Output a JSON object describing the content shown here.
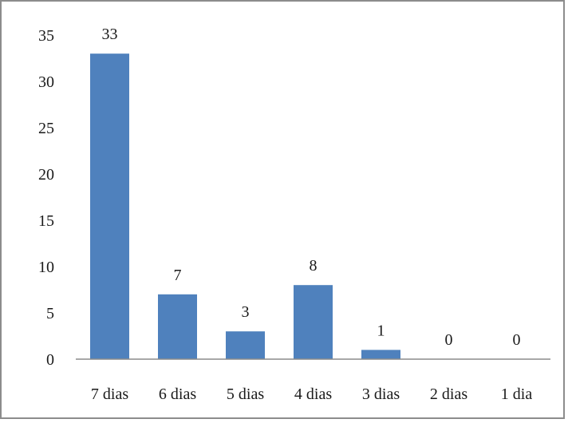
{
  "chart_data": {
    "type": "bar",
    "categories": [
      "7 dias",
      "6 dias",
      "5 dias",
      "4 dias",
      "3 dias",
      "2 dias",
      "1 dia"
    ],
    "values": [
      33,
      7,
      3,
      8,
      1,
      0,
      0
    ],
    "data_labels": [
      "33",
      "7",
      "3",
      "8",
      "1",
      "0",
      "0"
    ],
    "ylim": [
      0,
      35
    ],
    "yticks": [
      0,
      5,
      10,
      15,
      20,
      25,
      30,
      35
    ],
    "title": "",
    "xlabel": "",
    "ylabel": "",
    "grid": false,
    "legend": "none",
    "bar_color": "#4f81bd"
  }
}
